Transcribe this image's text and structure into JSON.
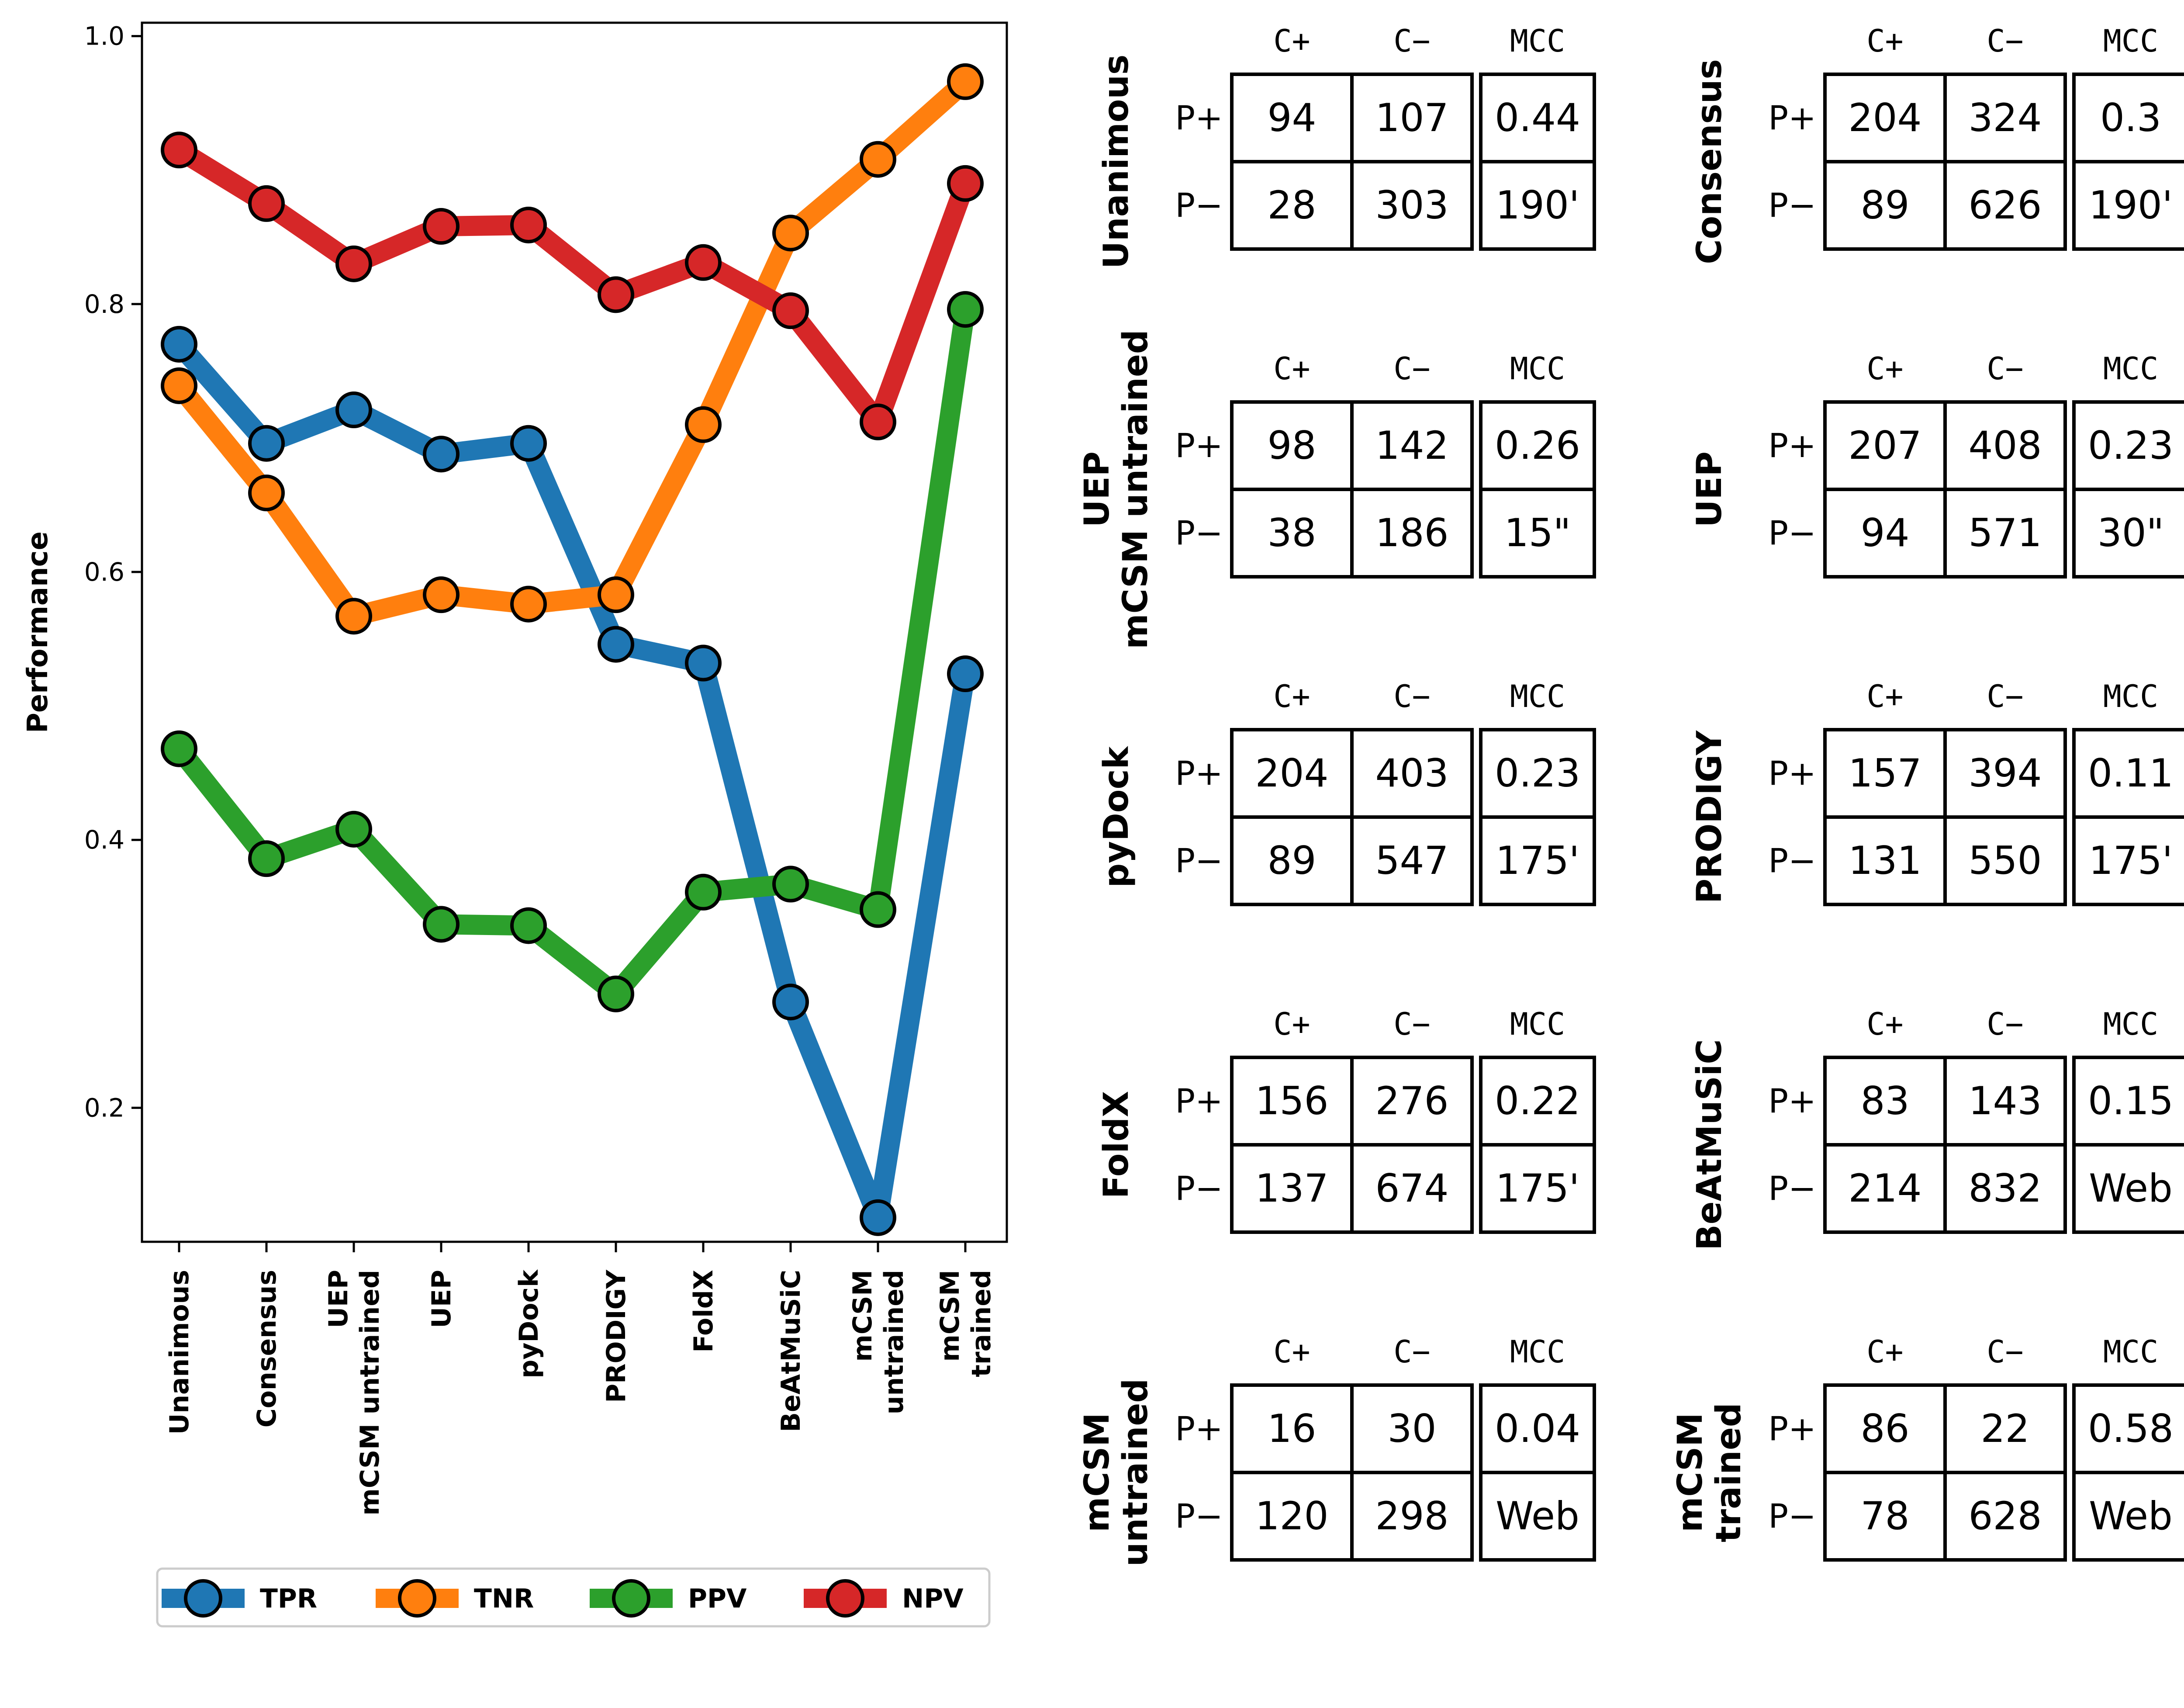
{
  "chart_data": {
    "type": "line",
    "ylabel": "Performance",
    "xlabel": "",
    "ylim": [
      0.1,
      1.01
    ],
    "yticks": [
      "0.2",
      "0.4",
      "0.6",
      "0.8",
      "1.0"
    ],
    "grid": false,
    "legend_position": "bottom",
    "categories": [
      [
        "Unanimous"
      ],
      [
        "Consensus"
      ],
      [
        "UEP",
        "mCSM untrained"
      ],
      [
        "UEP"
      ],
      [
        "pyDock"
      ],
      [
        "PRODIGY"
      ],
      [
        "FoldX"
      ],
      [
        "BeAtMuSiC"
      ],
      [
        "mCSM",
        "untrained"
      ],
      [
        "mCSM",
        "trained"
      ]
    ],
    "series": [
      {
        "name": "TPR",
        "color": "#1f77b4",
        "values": [
          0.77,
          0.696,
          0.721,
          0.688,
          0.696,
          0.546,
          0.532,
          0.279,
          0.118,
          0.524
        ]
      },
      {
        "name": "TNR",
        "color": "#ff7f0e",
        "values": [
          0.739,
          0.659,
          0.567,
          0.583,
          0.576,
          0.583,
          0.71,
          0.853,
          0.908,
          0.966
        ]
      },
      {
        "name": "PPV",
        "color": "#2ca02c",
        "values": [
          0.468,
          0.386,
          0.408,
          0.337,
          0.336,
          0.285,
          0.361,
          0.367,
          0.348,
          0.796
        ]
      },
      {
        "name": "NPV",
        "color": "#d62728",
        "values": [
          0.915,
          0.875,
          0.83,
          0.858,
          0.859,
          0.807,
          0.831,
          0.795,
          0.712,
          0.89
        ]
      }
    ]
  },
  "tables_header": {
    "c_plus": "C+",
    "c_minus": "C−",
    "mcc": "MCC",
    "p_plus": "P+",
    "p_minus": "P−"
  },
  "tables": [
    {
      "title": [
        "Unanimous"
      ],
      "tp": "94",
      "fp": "107",
      "fn": "28",
      "tn": "303",
      "mcc": "0.44",
      "time": "190'"
    },
    {
      "title": [
        "Consensus"
      ],
      "tp": "204",
      "fp": "324",
      "fn": "89",
      "tn": "626",
      "mcc": "0.3",
      "time": "190'"
    },
    {
      "title": [
        "UEP",
        "mCSM untrained"
      ],
      "tp": "98",
      "fp": "142",
      "fn": "38",
      "tn": "186",
      "mcc": "0.26",
      "time": "15\""
    },
    {
      "title": [
        "UEP"
      ],
      "tp": "207",
      "fp": "408",
      "fn": "94",
      "tn": "571",
      "mcc": "0.23",
      "time": "30\""
    },
    {
      "title": [
        "pyDock"
      ],
      "tp": "204",
      "fp": "403",
      "fn": "89",
      "tn": "547",
      "mcc": "0.23",
      "time": "175'"
    },
    {
      "title": [
        "PRODIGY"
      ],
      "tp": "157",
      "fp": "394",
      "fn": "131",
      "tn": "550",
      "mcc": "0.11",
      "time": "175'"
    },
    {
      "title": [
        "FoldX"
      ],
      "tp": "156",
      "fp": "276",
      "fn": "137",
      "tn": "674",
      "mcc": "0.22",
      "time": "175'"
    },
    {
      "title": [
        "BeAtMuSiC"
      ],
      "tp": "83",
      "fp": "143",
      "fn": "214",
      "tn": "832",
      "mcc": "0.15",
      "time": "Web"
    },
    {
      "title": [
        "mCSM",
        "untrained"
      ],
      "tp": "16",
      "fp": "30",
      "fn": "120",
      "tn": "298",
      "mcc": "0.04",
      "time": "Web"
    },
    {
      "title": [
        "mCSM",
        "trained"
      ],
      "tp": "86",
      "fp": "22",
      "fn": "78",
      "tn": "628",
      "mcc": "0.58",
      "time": "Web"
    }
  ]
}
